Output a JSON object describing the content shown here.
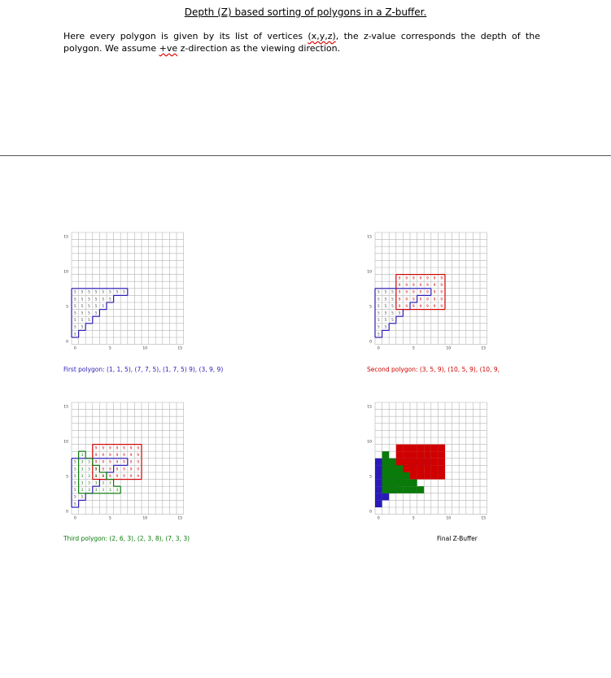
{
  "title": "Depth (Z) based sorting of polygons in a Z-buffer.",
  "intro": {
    "part1": "Here every polygon is given by its list of vertices ",
    "coords": "(x,y,z)",
    "part2": ", the z-value corresponds the depth of the polygon. We assume ",
    "ve": "+ve",
    "part3": " z-direction as the viewing direction."
  },
  "grid": {
    "size": 16,
    "y_ticks": [
      "0",
      "5",
      "10",
      "15"
    ],
    "x_ticks": [
      "0",
      "5",
      "10",
      "15"
    ]
  },
  "colors": {
    "blue": "#2a1ab8",
    "red": "#d00000",
    "green": "#0a7a0a",
    "grid": "#b4b4b4"
  },
  "panels": [
    {
      "id": "first",
      "caption": "First polygon: (1, 1, 5), (7, 7, 5), (1, 7, 5) 9), (3, 9, 9)",
      "caption_color": "blue"
    },
    {
      "id": "second",
      "caption": "Second polygon: (3, 5, 9), (10, 5, 9), (10, 9,",
      "caption_color": "red"
    },
    {
      "id": "third",
      "caption": "Third polygon: (2, 6, 3), (2, 3, 8), (7, 3, 3)",
      "caption_color": "green"
    },
    {
      "id": "final",
      "caption": "Final Z-Buffer",
      "caption_color": "black"
    }
  ]
}
